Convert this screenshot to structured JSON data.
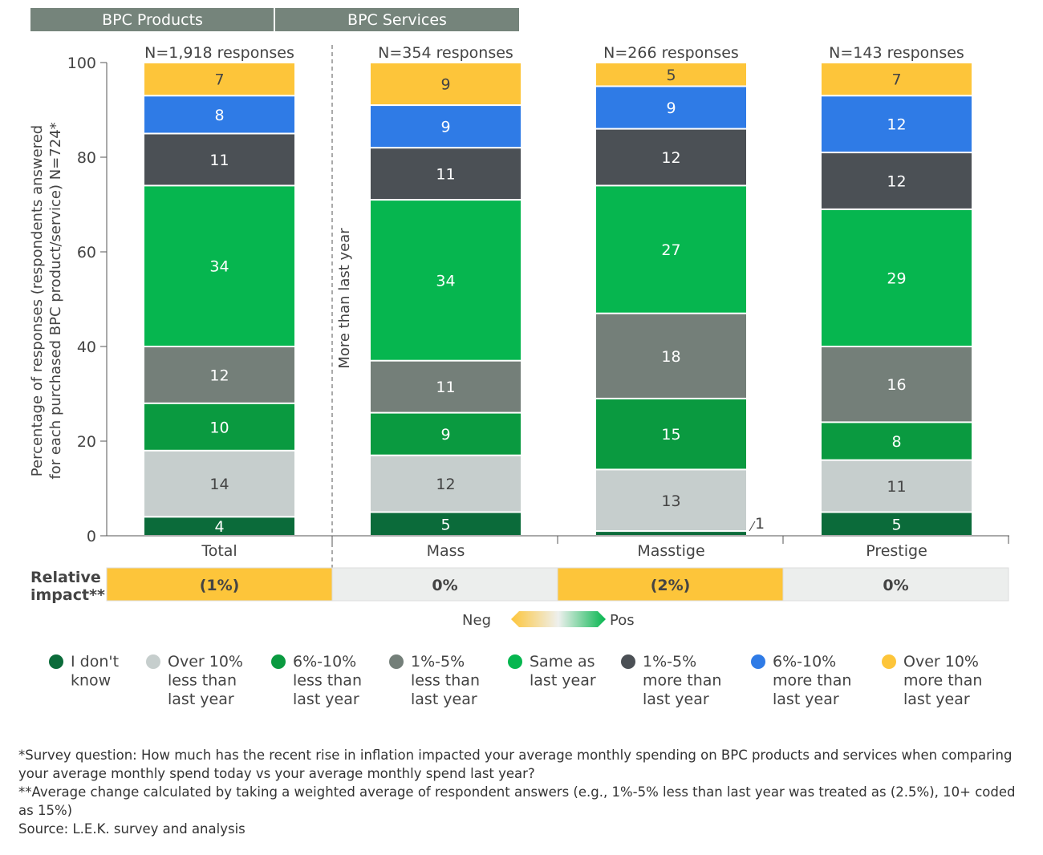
{
  "chart_data": {
    "type": "bar",
    "stacked": true,
    "orientation": "vertical",
    "group_headers": [
      "BPC Products",
      "BPC Services"
    ],
    "ylabel_lines": [
      "Percentage of responses (respondents answered",
      "for each purchased BPC product/service) N=724*"
    ],
    "ylim": [
      0,
      100
    ],
    "yticks": [
      0,
      20,
      40,
      60,
      80,
      100
    ],
    "divider_label": "More than last year",
    "categories": [
      "Total",
      "Mass",
      "Masstige",
      "Prestige"
    ],
    "n_labels": [
      "N=1,918 responses",
      "N=354 responses",
      "N=266 responses",
      "N=143 responses"
    ],
    "series": [
      {
        "name": "I don't know",
        "legend_lines": [
          "I don't",
          "know"
        ],
        "color": "#0b6b3a",
        "values": [
          4,
          5,
          1,
          5
        ]
      },
      {
        "name": "Over 10% less than last year",
        "legend_lines": [
          "Over 10%",
          "less than",
          "last year"
        ],
        "color": "#c6cecd",
        "values": [
          14,
          12,
          13,
          11
        ]
      },
      {
        "name": "6%-10% less than last year",
        "legend_lines": [
          "6%-10%",
          "less than",
          "last year"
        ],
        "color": "#0a9a40",
        "values": [
          10,
          9,
          15,
          8
        ]
      },
      {
        "name": "1%-5% less than last year",
        "legend_lines": [
          "1%-5%",
          "less than",
          "last year"
        ],
        "color": "#747f79",
        "values": [
          12,
          11,
          18,
          16
        ]
      },
      {
        "name": "Same as last year",
        "legend_lines": [
          "Same as",
          "last year"
        ],
        "color": "#06b64f",
        "values": [
          34,
          34,
          27,
          29
        ]
      },
      {
        "name": "1%-5% more than last year",
        "legend_lines": [
          "1%-5%",
          "more than",
          "last year"
        ],
        "color": "#4b5055",
        "values": [
          11,
          11,
          12,
          12
        ]
      },
      {
        "name": "6%-10% more than last year",
        "legend_lines": [
          "6%-10%",
          "more than",
          "last year"
        ],
        "color": "#2f7be6",
        "values": [
          8,
          9,
          9,
          12
        ]
      },
      {
        "name": "Over 10% more than last year",
        "legend_lines": [
          "Over 10%",
          "more than",
          "last year"
        ],
        "color": "#fdc53a",
        "values": [
          7,
          9,
          5,
          7
        ]
      }
    ],
    "relative_impact": {
      "label_lines": [
        "Relative",
        "impact**"
      ],
      "values": [
        "(1%)",
        "0%",
        "(2%)",
        "0%"
      ],
      "colors": [
        "#fdc53a",
        "#eceeed",
        "#fdc53a",
        "#eceeed"
      ]
    },
    "scale_legend": {
      "neg": "Neg",
      "pos": "Pos"
    }
  },
  "notes": [
    "*Survey question: How much has the recent rise in inflation impacted your average monthly spending on BPC products and services when comparing your average monthly spend today vs your average monthly spend last year?",
    "**Average change calculated by taking a weighted average of respondent answers (e.g., 1%-5% less than last year was treated as (2.5%), 10+ coded as 15%)",
    "Source: L.E.K. survey and analysis"
  ]
}
